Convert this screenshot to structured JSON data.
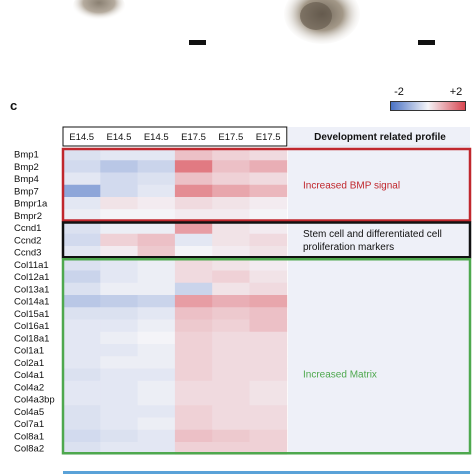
{
  "panel_label": "c",
  "colors": {
    "low": "#4a72c4",
    "mid": "#f4f4f8",
    "high": "#d94650",
    "bmp_box": "#c0272d",
    "stem_box": "#111111",
    "matrix_box": "#4ea84e",
    "profile_bg": "#eef0f8",
    "bottom_bar": "#5aa2d8"
  },
  "chart_data": {
    "type": "heatmap",
    "title": "",
    "colorbar": {
      "min": -2,
      "max": 2,
      "min_label": "-2",
      "max_label": "+2"
    },
    "columns": [
      "E14.5",
      "E14.5",
      "E14.5",
      "E17.5",
      "E17.5",
      "E17.5"
    ],
    "rows": [
      "Bmp1",
      "Bmp2",
      "Bmp4",
      "Bmp7",
      "Bmpr1a",
      "Bmpr2",
      "Ccnd1",
      "Ccnd2",
      "Ccnd3",
      "Col11a1",
      "Col12a1",
      "Col13a1",
      "Col14a1",
      "Col15a1",
      "Col16a1",
      "Col18a1",
      "Col1a1",
      "Col2a1",
      "Col4a1",
      "Col4a2",
      "Col4a3bp",
      "Col4a5",
      "Col7a1",
      "Col8a1",
      "Col8a2"
    ],
    "values": [
      [
        -0.3,
        -0.2,
        -0.2,
        0.6,
        0.4,
        0.3
      ],
      [
        -0.4,
        -0.7,
        -0.5,
        1.4,
        0.6,
        0.8
      ],
      [
        -0.2,
        -0.4,
        -0.3,
        0.6,
        0.4,
        0.3
      ],
      [
        -1.2,
        -0.4,
        -0.2,
        1.2,
        0.9,
        0.7
      ],
      [
        -0.2,
        0.2,
        0.1,
        0.3,
        0.2,
        0.1
      ],
      [
        -0.1,
        0.0,
        0.0,
        0.1,
        0.1,
        0.0
      ],
      [
        -0.3,
        -0.1,
        -0.1,
        1.0,
        0.2,
        0.1
      ],
      [
        -0.4,
        0.4,
        0.6,
        -0.2,
        0.2,
        0.3
      ],
      [
        -0.2,
        0.1,
        0.5,
        0.0,
        0.1,
        0.2
      ],
      [
        -0.3,
        -0.2,
        -0.1,
        0.3,
        0.2,
        0.1
      ],
      [
        -0.5,
        -0.2,
        -0.1,
        0.3,
        0.4,
        0.2
      ],
      [
        -0.3,
        -0.1,
        -0.1,
        -0.5,
        0.2,
        0.3
      ],
      [
        -0.7,
        -0.6,
        -0.5,
        1.0,
        0.8,
        0.9
      ],
      [
        -0.3,
        -0.3,
        -0.2,
        0.6,
        0.5,
        0.6
      ],
      [
        -0.2,
        -0.2,
        -0.1,
        0.5,
        0.4,
        0.6
      ],
      [
        -0.2,
        -0.1,
        0.0,
        0.4,
        0.3,
        0.3
      ],
      [
        -0.2,
        -0.2,
        -0.1,
        0.4,
        0.3,
        0.3
      ],
      [
        -0.2,
        -0.1,
        -0.1,
        0.4,
        0.3,
        0.3
      ],
      [
        -0.3,
        -0.2,
        -0.2,
        0.4,
        0.3,
        0.3
      ],
      [
        -0.2,
        -0.2,
        -0.1,
        0.3,
        0.3,
        0.2
      ],
      [
        -0.2,
        -0.2,
        -0.1,
        0.3,
        0.3,
        0.2
      ],
      [
        -0.3,
        -0.2,
        -0.2,
        0.4,
        0.3,
        0.3
      ],
      [
        -0.3,
        -0.2,
        -0.1,
        0.4,
        0.3,
        0.3
      ],
      [
        -0.4,
        -0.3,
        -0.2,
        0.6,
        0.5,
        0.4
      ],
      [
        -0.3,
        -0.2,
        -0.2,
        0.4,
        0.4,
        0.4
      ]
    ],
    "profile_header": "Development related profile",
    "groups": [
      {
        "label": "Increased BMP signal",
        "rows": [
          0,
          5
        ],
        "box": "bmp_box"
      },
      {
        "label": "Stem cell and differentiated cell proliferation markers",
        "label_lines": [
          "Stem cell and differentiated cell",
          "proliferation markers"
        ],
        "rows": [
          6,
          8
        ],
        "box": "stem_box"
      },
      {
        "label": "Increased Matrix",
        "rows": [
          9,
          24
        ],
        "box": "matrix_box"
      }
    ]
  }
}
